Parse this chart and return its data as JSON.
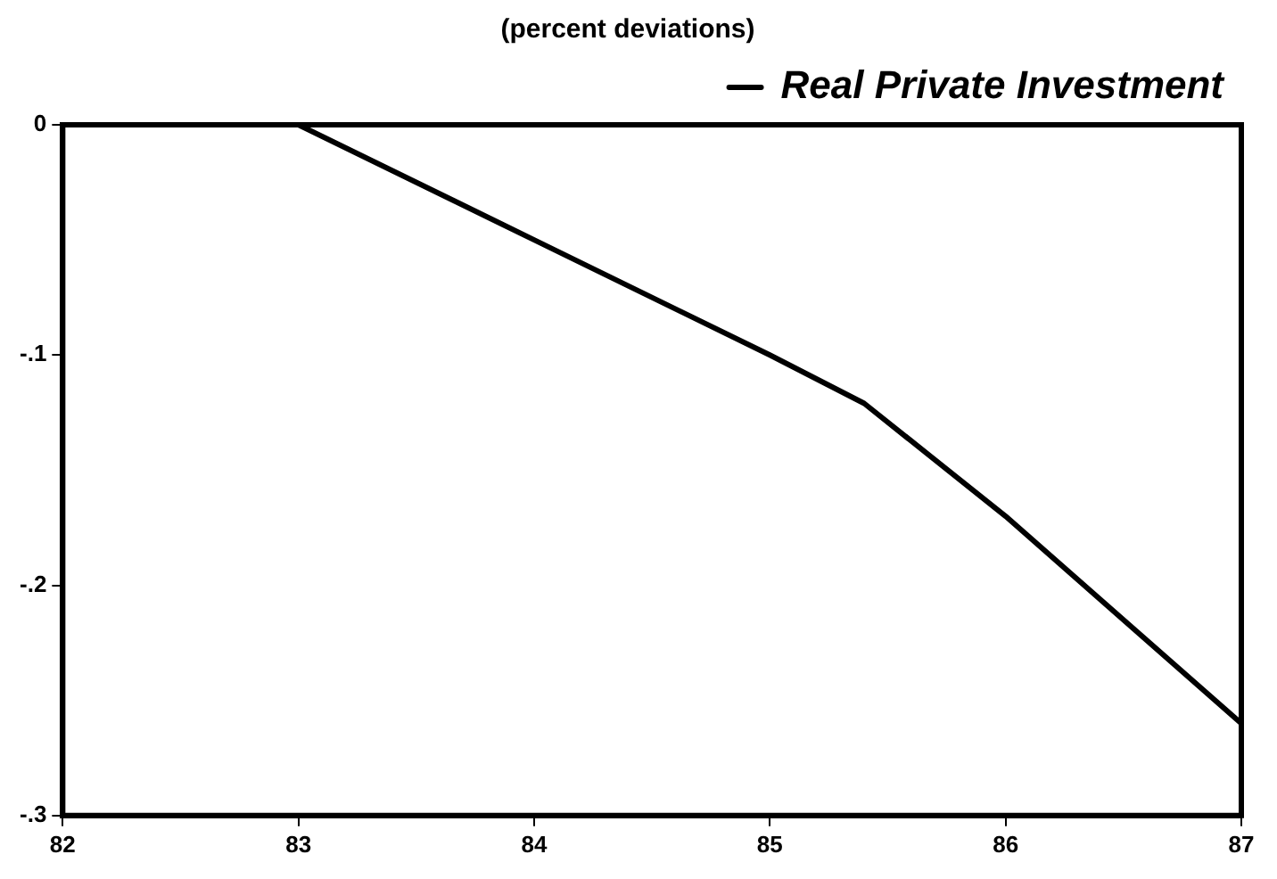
{
  "chart_data": {
    "type": "line",
    "title": "(percent deviations)",
    "x": [
      82,
      83,
      84,
      85,
      85.4,
      86,
      87
    ],
    "series": [
      {
        "name": "Real Private Investment",
        "color": "#000000",
        "values": [
          0,
          0,
          -0.05,
          -0.1,
          -0.121,
          -0.17,
          -0.26
        ]
      }
    ],
    "xlim": [
      82,
      87
    ],
    "xticks": [
      82,
      83,
      84,
      85,
      86,
      87
    ],
    "ylim": [
      -0.3,
      0
    ],
    "yticks": [
      {
        "value": -0.3,
        "label": "-.3"
      },
      {
        "value": -0.2,
        "label": "-.2"
      },
      {
        "value": -0.1,
        "label": "-.1"
      },
      0
    ],
    "legend": "top right",
    "grid": false,
    "marker": "none",
    "line_style": "solid"
  }
}
